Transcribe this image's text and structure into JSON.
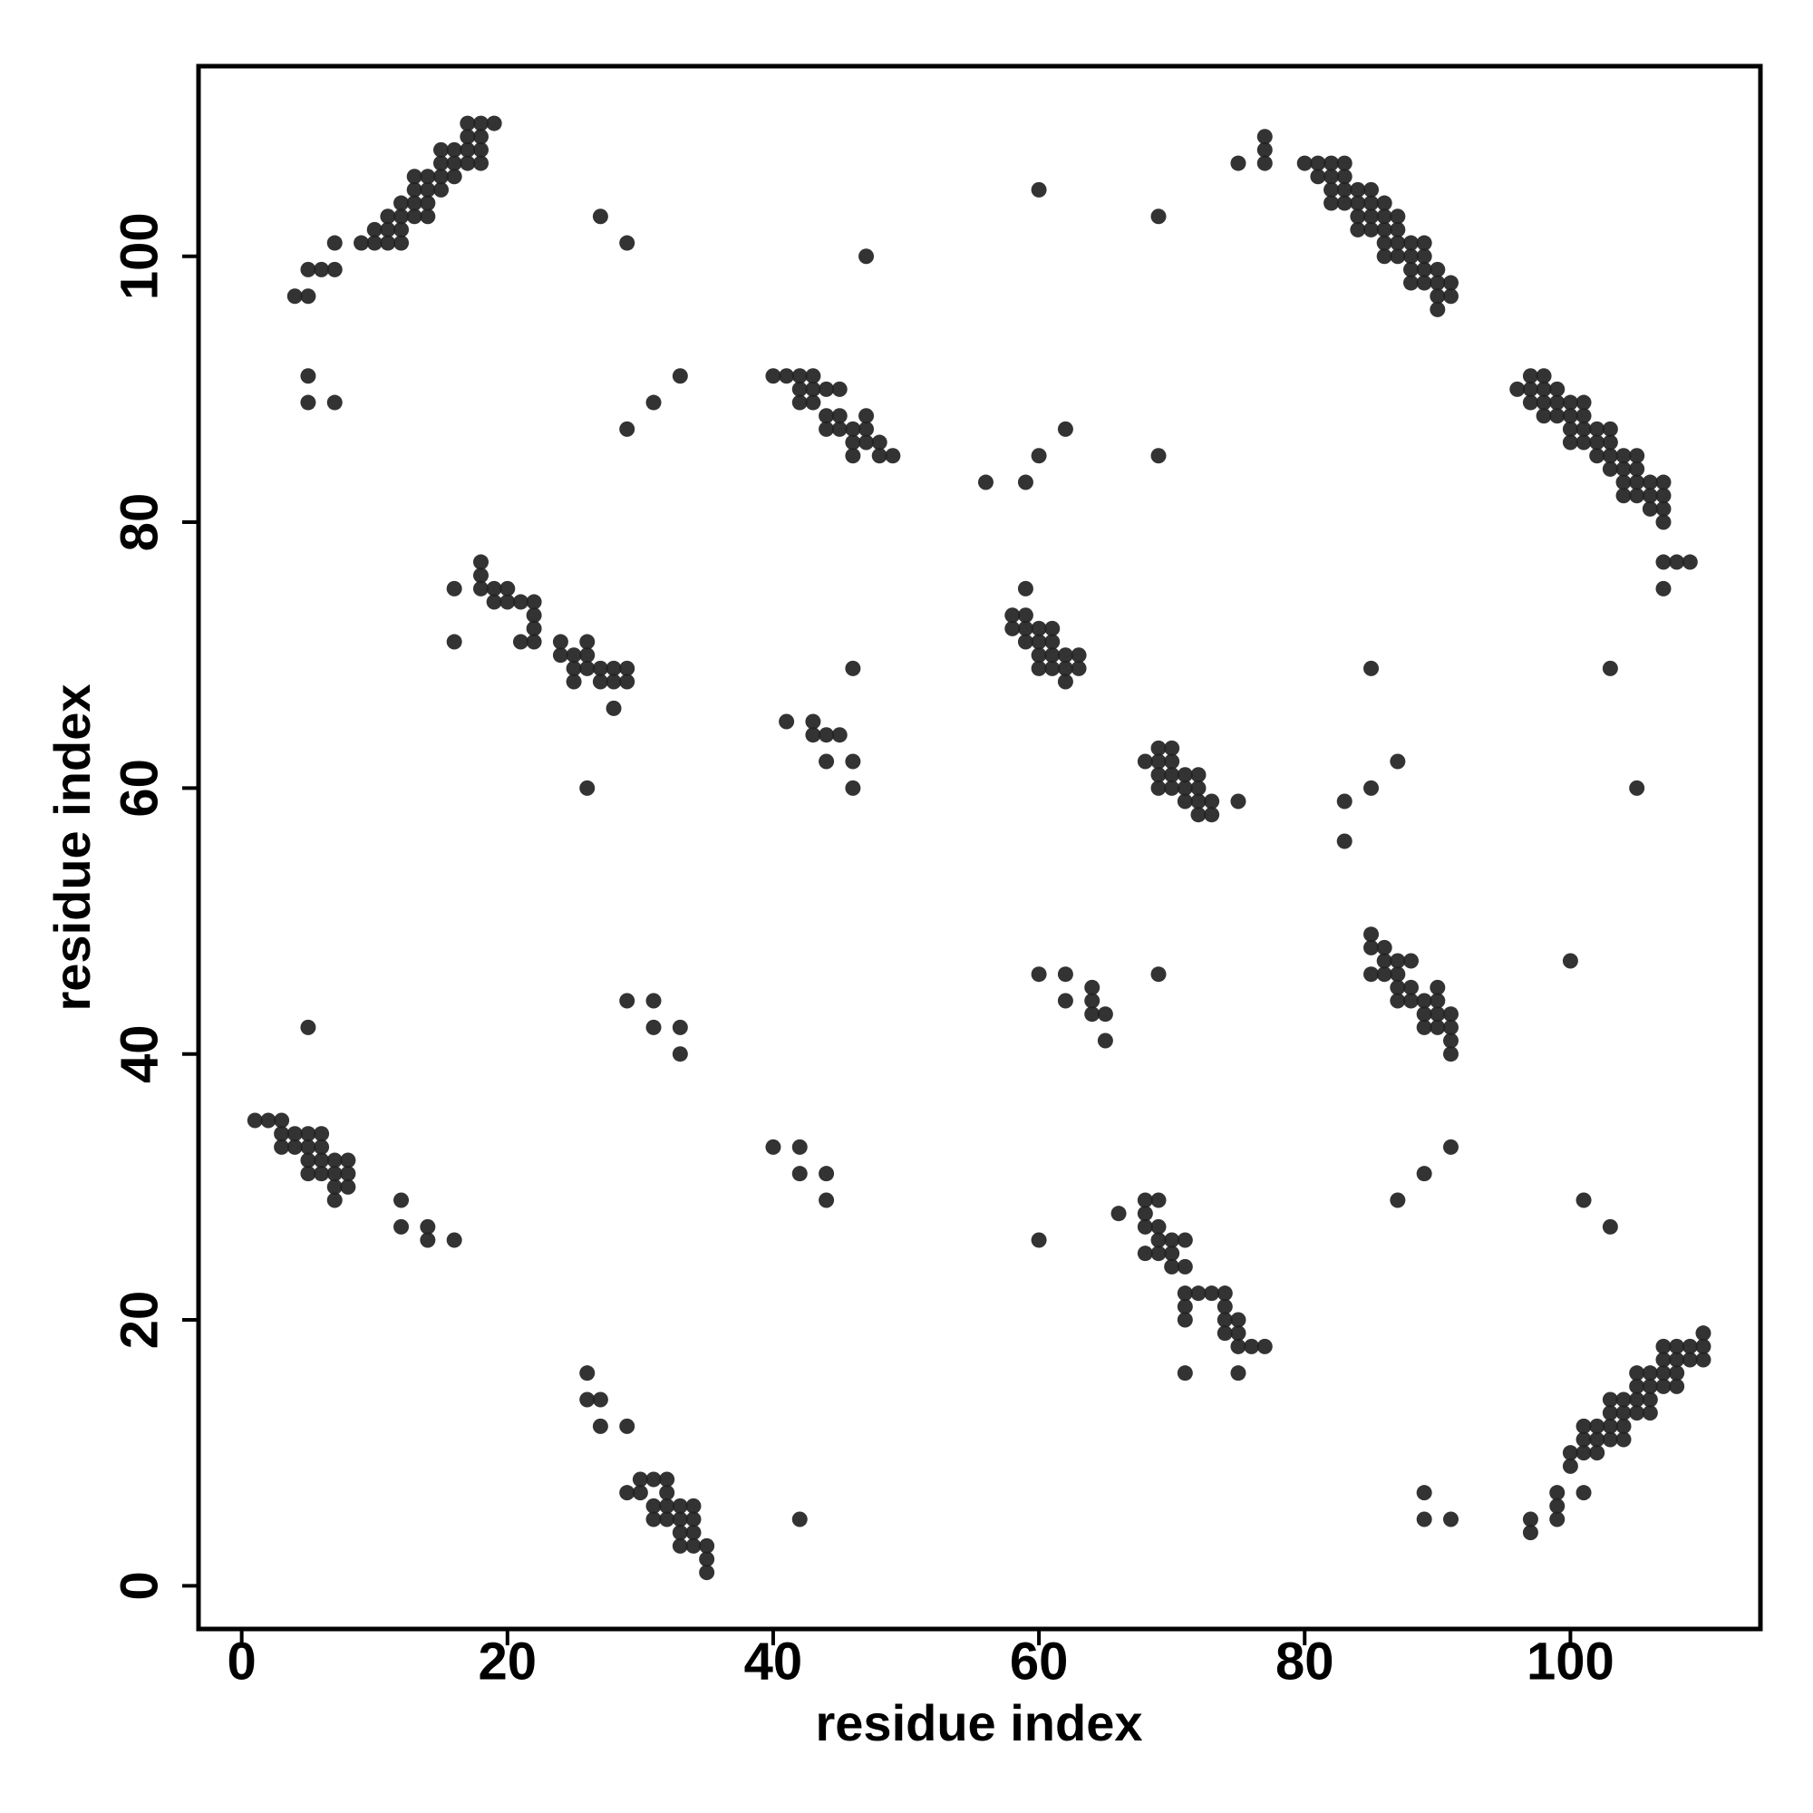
{
  "chart_data": {
    "type": "scatter",
    "xlabel": "residue index",
    "ylabel": "residue index",
    "color": "#222222",
    "x": [
      4,
      5,
      5,
      6,
      7,
      7,
      9,
      10,
      10,
      11,
      11,
      11,
      12,
      12,
      12,
      12,
      13,
      13,
      13,
      13,
      14,
      14,
      14,
      14,
      15,
      15,
      15,
      15,
      16,
      16,
      16,
      17,
      17,
      17,
      17,
      18,
      18,
      18,
      18,
      19,
      5,
      5,
      7,
      27,
      29,
      47,
      33,
      31,
      29,
      40,
      41,
      42,
      42,
      42,
      43,
      43,
      43,
      44,
      44,
      44,
      45,
      45,
      45,
      46,
      46,
      46,
      47,
      47,
      47,
      48,
      48,
      49,
      56,
      59,
      60,
      62,
      69,
      60,
      69,
      75,
      77,
      77,
      77,
      80,
      81,
      81,
      82,
      82,
      82,
      82,
      83,
      83,
      83,
      83,
      84,
      84,
      84,
      84,
      85,
      85,
      85,
      85,
      86,
      86,
      86,
      86,
      86,
      87,
      87,
      87,
      87,
      88,
      88,
      88,
      88,
      89,
      89,
      89,
      89,
      90,
      90,
      90,
      90,
      91,
      91,
      96,
      97,
      97,
      97,
      98,
      98,
      98,
      98,
      99,
      99,
      99,
      100,
      100,
      100,
      100,
      101,
      101,
      101,
      101,
      102,
      102,
      102,
      103,
      103,
      103,
      103,
      104,
      104,
      104,
      104,
      105,
      105,
      105,
      105,
      106,
      106,
      106,
      107,
      107,
      107,
      107,
      107,
      108,
      109,
      107,
      16,
      16,
      18,
      18,
      18,
      19,
      19,
      20,
      20,
      21,
      21,
      22,
      22,
      22,
      22,
      24,
      24,
      25,
      25,
      25,
      26,
      26,
      26,
      27,
      27,
      28,
      28,
      28,
      29,
      29,
      26,
      41,
      43,
      43,
      44,
      45,
      44,
      46,
      46,
      46,
      58,
      58,
      59,
      59,
      59,
      59,
      60,
      60,
      60,
      60,
      61,
      61,
      61,
      61,
      62,
      62,
      62,
      63,
      63,
      68,
      69,
      69,
      69,
      69,
      70,
      70,
      70,
      70,
      71,
      71,
      71,
      72,
      72,
      72,
      72,
      73,
      73,
      75,
      83,
      83,
      85,
      85,
      87,
      103,
      105,
      85,
      85,
      85,
      86,
      86,
      86,
      87,
      87,
      87,
      87,
      88,
      88,
      88,
      89,
      89,
      89,
      90,
      90,
      90,
      90,
      91,
      91,
      91,
      91,
      100,
      60,
      62,
      62,
      64,
      64,
      64,
      65,
      65,
      69,
      5,
      29,
      31,
      31,
      33,
      33,
      1,
      2,
      3,
      3,
      3,
      4,
      4,
      5,
      5,
      5,
      5,
      6,
      6,
      6,
      6,
      7,
      7,
      7,
      7,
      8,
      8,
      8,
      12,
      12,
      14,
      14,
      16,
      40,
      42,
      42,
      44,
      44,
      66,
      68,
      68,
      68,
      68,
      69,
      69,
      69,
      69,
      70,
      70,
      70,
      71,
      71,
      71,
      71,
      71,
      72,
      73,
      74,
      74,
      74,
      74,
      75,
      75,
      75,
      75,
      76,
      77,
      71,
      60,
      87,
      89,
      91,
      101,
      103,
      26,
      26,
      27,
      27,
      29,
      29,
      30,
      30,
      31,
      31,
      31,
      32,
      32,
      32,
      32,
      33,
      33,
      33,
      33,
      34,
      34,
      34,
      34,
      35,
      35,
      35,
      42,
      89,
      89,
      91,
      97,
      97,
      99,
      99,
      99,
      100,
      100,
      101,
      101,
      101,
      101,
      102,
      102,
      102,
      103,
      103,
      103,
      103,
      104,
      104,
      104,
      104,
      105,
      105,
      105,
      105,
      106,
      106,
      106,
      106,
      107,
      107,
      107,
      107,
      108,
      108,
      108,
      108,
      109,
      109,
      110,
      110,
      110
    ],
    "values": [
      97,
      97,
      99,
      99,
      99,
      101,
      101,
      101,
      102,
      101,
      102,
      103,
      101,
      102,
      103,
      104,
      103,
      104,
      105,
      106,
      103,
      104,
      105,
      106,
      105,
      106,
      107,
      108,
      106,
      107,
      108,
      107,
      108,
      109,
      110,
      107,
      108,
      109,
      110,
      110,
      91,
      89,
      89,
      103,
      101,
      100,
      91,
      89,
      87,
      91,
      91,
      90,
      89,
      91,
      90,
      91,
      89,
      88,
      90,
      87,
      88,
      90,
      87,
      86,
      87,
      85,
      86,
      87,
      88,
      85,
      86,
      85,
      83,
      83,
      85,
      87,
      85,
      105,
      103,
      107,
      109,
      108,
      107,
      107,
      107,
      106,
      107,
      106,
      105,
      104,
      107,
      106,
      105,
      104,
      105,
      104,
      103,
      102,
      105,
      104,
      103,
      102,
      104,
      103,
      102,
      101,
      100,
      103,
      102,
      101,
      100,
      101,
      100,
      99,
      98,
      101,
      100,
      99,
      98,
      99,
      98,
      97,
      96,
      98,
      97,
      90,
      91,
      90,
      89,
      91,
      90,
      89,
      88,
      90,
      89,
      88,
      89,
      88,
      87,
      86,
      89,
      88,
      87,
      86,
      87,
      86,
      85,
      87,
      86,
      85,
      84,
      85,
      84,
      83,
      82,
      85,
      84,
      83,
      82,
      83,
      82,
      81,
      83,
      82,
      81,
      80,
      77,
      77,
      77,
      75,
      75,
      71,
      77,
      76,
      75,
      75,
      74,
      75,
      74,
      74,
      71,
      74,
      73,
      72,
      71,
      71,
      70,
      70,
      69,
      68,
      71,
      70,
      69,
      69,
      68,
      69,
      68,
      66,
      69,
      68,
      60,
      65,
      65,
      64,
      64,
      64,
      62,
      62,
      60,
      69,
      73,
      72,
      75,
      73,
      72,
      71,
      72,
      71,
      70,
      69,
      72,
      71,
      70,
      69,
      70,
      69,
      68,
      70,
      69,
      62,
      63,
      62,
      61,
      60,
      63,
      62,
      61,
      60,
      61,
      60,
      59,
      61,
      60,
      59,
      58,
      59,
      58,
      59,
      59,
      56,
      60,
      69,
      62,
      69,
      60,
      49,
      48,
      46,
      48,
      47,
      46,
      47,
      46,
      45,
      44,
      47,
      45,
      44,
      44,
      43,
      42,
      45,
      44,
      43,
      42,
      43,
      42,
      41,
      40,
      47,
      46,
      46,
      44,
      45,
      44,
      43,
      43,
      41,
      46,
      42,
      44,
      44,
      42,
      42,
      40,
      35,
      35,
      35,
      34,
      33,
      34,
      33,
      34,
      33,
      32,
      31,
      34,
      33,
      32,
      31,
      32,
      31,
      30,
      29,
      32,
      31,
      30,
      29,
      27,
      27,
      26,
      26,
      33,
      33,
      31,
      31,
      29,
      28,
      29,
      28,
      27,
      25,
      29,
      27,
      26,
      25,
      26,
      25,
      24,
      26,
      24,
      22,
      21,
      20,
      22,
      22,
      22,
      21,
      20,
      19,
      20,
      19,
      18,
      16,
      18,
      18,
      16,
      26,
      29,
      31,
      33,
      29,
      27,
      16,
      14,
      14,
      12,
      12,
      7,
      8,
      7,
      8,
      6,
      5,
      8,
      7,
      6,
      5,
      6,
      5,
      4,
      3,
      6,
      5,
      4,
      3,
      3,
      2,
      1,
      5,
      7,
      5,
      5,
      5,
      4,
      7,
      6,
      5,
      10,
      9,
      12,
      11,
      10,
      7,
      12,
      11,
      10,
      14,
      13,
      12,
      11,
      14,
      13,
      12,
      11,
      16,
      15,
      14,
      13,
      16,
      15,
      14,
      13,
      18,
      17,
      16,
      15,
      18,
      17,
      16,
      15,
      18,
      17,
      19,
      18,
      17
    ],
    "xlim": [
      -3.25,
      114.3
    ],
    "ylim": [
      -3.25,
      114.3
    ],
    "xticks": [
      0,
      20,
      40,
      60,
      80,
      100
    ],
    "yticks": [
      0,
      20,
      40,
      60,
      80,
      100
    ],
    "grid": false
  }
}
